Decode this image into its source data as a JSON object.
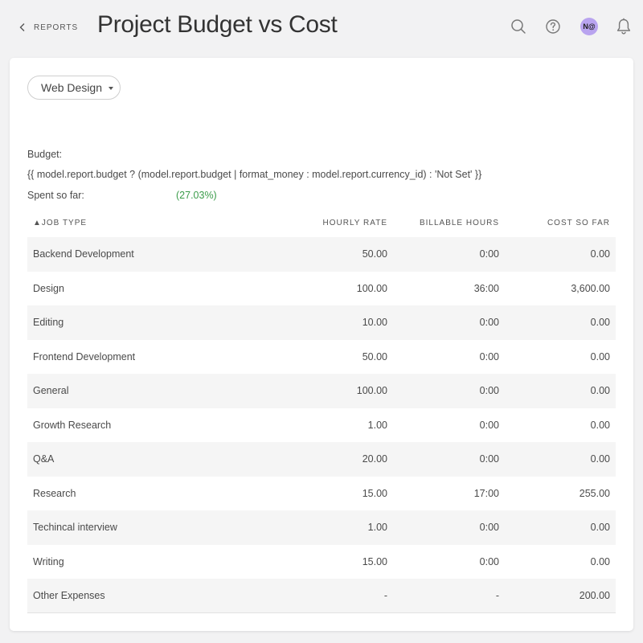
{
  "header": {
    "back_label": "REPORTS",
    "title": "Project Budget vs Cost",
    "icons": [
      "search-icon",
      "help-icon",
      "avatar",
      "bell-icon"
    ],
    "avatar_initials": "N@"
  },
  "filter": {
    "project_selected": "Web Design"
  },
  "summary": {
    "budget_label": "Budget:",
    "budget_template_text": "{{ model.report.budget ? (model.report.budget | format_money : model.report.currency_id) : 'Not Set' }}",
    "spent_label": "Spent so far:",
    "spent_percent": "(27.03%)",
    "spent_color": "#3b9c4a"
  },
  "table": {
    "columns": [
      "▲JOB TYPE",
      "HOURLY RATE",
      "BILLABLE HOURS",
      "COST SO FAR"
    ],
    "rows": [
      {
        "job_type": "Backend Development",
        "hourly_rate": "50.00",
        "billable_hours": "0:00",
        "cost_so_far": "0.00"
      },
      {
        "job_type": "Design",
        "hourly_rate": "100.00",
        "billable_hours": "36:00",
        "cost_so_far": "3,600.00"
      },
      {
        "job_type": "Editing",
        "hourly_rate": "10.00",
        "billable_hours": "0:00",
        "cost_so_far": "0.00"
      },
      {
        "job_type": "Frontend Development",
        "hourly_rate": "50.00",
        "billable_hours": "0:00",
        "cost_so_far": "0.00"
      },
      {
        "job_type": "General",
        "hourly_rate": "100.00",
        "billable_hours": "0:00",
        "cost_so_far": "0.00"
      },
      {
        "job_type": "Growth Research",
        "hourly_rate": "1.00",
        "billable_hours": "0:00",
        "cost_so_far": "0.00"
      },
      {
        "job_type": "Q&A",
        "hourly_rate": "20.00",
        "billable_hours": "0:00",
        "cost_so_far": "0.00"
      },
      {
        "job_type": "Research",
        "hourly_rate": "15.00",
        "billable_hours": "17:00",
        "cost_so_far": "255.00"
      },
      {
        "job_type": "Techincal interview",
        "hourly_rate": "1.00",
        "billable_hours": "0:00",
        "cost_so_far": "0.00"
      },
      {
        "job_type": "Writing",
        "hourly_rate": "15.00",
        "billable_hours": "0:00",
        "cost_so_far": "0.00"
      },
      {
        "job_type": "Other Expenses",
        "hourly_rate": "-",
        "billable_hours": "-",
        "cost_so_far": "200.00"
      }
    ]
  },
  "colors": {
    "background": "#f2f2f3",
    "card": "#ffffff",
    "stripe": "#f5f5f5",
    "avatar": "#b9a4ef",
    "positive": "#3b9c4a"
  }
}
